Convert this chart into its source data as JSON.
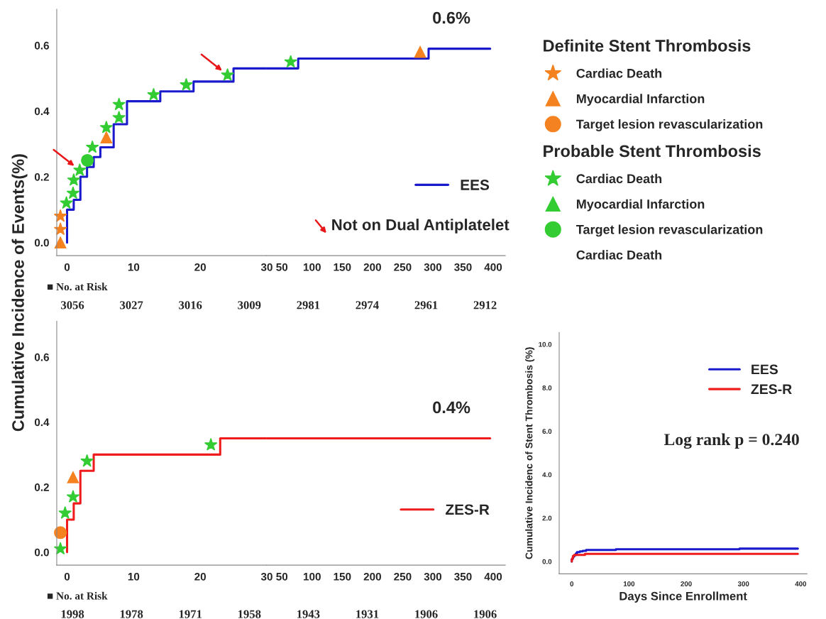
{
  "chart_data": [
    {
      "type": "step",
      "ylabel": "Cumulative Incidence of Events(%)",
      "xlim": [
        -1.55,
        30
      ],
      "ylim": [
        -0.04,
        0.71
      ],
      "xticks": [
        0,
        10,
        20,
        30
      ],
      "yticks": [
        {
          "value": 0,
          "label": "0.0"
        },
        {
          "value": 0.2,
          "label": "0.2"
        },
        {
          "value": 0.4,
          "label": "0.4"
        },
        {
          "value": 0.6,
          "label": "0.6"
        }
      ],
      "legend": "right",
      "series": [
        {
          "color": "#1a1acc",
          "x": [
            0,
            0,
            1,
            2,
            3,
            4,
            5,
            7,
            9,
            14,
            19,
            25,
            30
          ],
          "values": [
            0,
            0.1,
            0.13,
            0.2,
            0.23,
            0.26,
            0.29,
            0.36,
            0.43,
            0.46,
            0.49,
            0.53,
            0.53
          ]
        },
        {
          "name": "Cardiac Death",
          "type": "scatter",
          "marker": "star",
          "color": "#f58220",
          "x": [
            -1,
            -1
          ],
          "values": [
            0.08,
            0.04
          ]
        },
        {
          "name": "Myocardial Infarction",
          "type": "scatter",
          "marker": "triangle",
          "color": "#f58220",
          "x": [
            -1,
            5.9
          ],
          "values": [
            0.0,
            0.32
          ]
        },
        {
          "name": "Target lesion revascularization",
          "type": "scatter",
          "marker": "circle",
          "color": "#f58220"
        },
        {
          "name": "Cardiac Death",
          "type": "scatter",
          "marker": "star",
          "color": "#33cc33",
          "x": [
            -0.1,
            0.9,
            1,
            1.9,
            3.8,
            5.9,
            7.8,
            7.8,
            13,
            17.9,
            24.1
          ],
          "values": [
            0.12,
            0.15,
            0.19,
            0.22,
            0.29,
            0.35,
            0.38,
            0.42,
            0.45,
            0.48,
            0.51
          ]
        },
        {
          "name": "Myocardial Infarction",
          "type": "scatter",
          "marker": "triangle",
          "color": "#33cc33"
        },
        {
          "name": "Target lesion revascularization",
          "type": "scatter",
          "marker": "circle",
          "color": "#33cc33",
          "x": [
            3.05
          ],
          "values": [
            0.25
          ]
        }
      ],
      "annotations": [
        "Definite Stent Thrombosis",
        "Probable Stent Thrombosis",
        "Cardiac Death",
        "■ No. at Risk",
        "3056",
        "3027",
        "3016",
        "3009",
        "2981",
        "2974",
        "2961",
        "2912"
      ]
    },
    {
      "type": "step",
      "xlim": [
        25,
        420
      ],
      "ylim": [
        -0.04,
        0.71
      ],
      "tick_labels": "x",
      "xticks": [
        50,
        100,
        150,
        200,
        250,
        300,
        350,
        400
      ],
      "legend": "bottom right",
      "series": [
        {
          "name": "EES",
          "color": "#1a1acc",
          "x": [
            25,
            77,
            293,
            395
          ],
          "values": [
            0.53,
            0.56,
            0.59,
            0.59
          ]
        },
        {
          "type": "scatter",
          "marker": "triangle",
          "color": "#f58220",
          "x": [
            279
          ],
          "values": [
            0.58
          ]
        },
        {
          "type": "scatter",
          "marker": "star",
          "color": "#33cc33",
          "x": [
            64.6
          ],
          "values": [
            0.55
          ]
        }
      ],
      "annotations": [
        "0.6%",
        "Not on Dual Antiplatelet"
      ]
    },
    {
      "type": "step",
      "xlim": [
        -1.55,
        30
      ],
      "ylim": [
        -0.04,
        0.71
      ],
      "xticks": [
        0,
        10,
        20,
        30
      ],
      "yticks": [
        {
          "value": 0,
          "label": "0.0"
        },
        {
          "value": 0.2,
          "label": "0.2"
        },
        {
          "value": 0.4,
          "label": "0.4"
        },
        {
          "value": 0.6,
          "label": "0.6"
        }
      ],
      "series": [
        {
          "color": "#ee1c1c",
          "x": [
            0,
            0,
            1,
            2,
            4,
            23,
            30
          ],
          "values": [
            0,
            0.1,
            0.15,
            0.25,
            0.3,
            0.35,
            0.35
          ]
        },
        {
          "type": "scatter",
          "marker": "star",
          "color": "#33cc33",
          "x": [
            -1,
            -0.3,
            0.9,
            3,
            21.6
          ],
          "values": [
            0.01,
            0.12,
            0.17,
            0.28,
            0.33
          ]
        },
        {
          "type": "scatter",
          "marker": "triangle",
          "color": "#f58220",
          "x": [
            0.9
          ],
          "values": [
            0.23
          ]
        },
        {
          "type": "scatter",
          "marker": "circle",
          "color": "#f58220",
          "x": [
            -1
          ],
          "values": [
            0.06
          ]
        }
      ],
      "annotations": [
        "■ No. at Risk",
        "1998",
        "1978",
        "1971",
        "1958",
        "1943",
        "1931",
        "1906",
        "1906"
      ]
    },
    {
      "type": "step",
      "xlim": [
        25,
        420
      ],
      "ylim": [
        -0.04,
        0.71
      ],
      "tick_labels": "x",
      "xticks": [
        50,
        100,
        150,
        200,
        250,
        300,
        350,
        400
      ],
      "legend": "bottom right",
      "series": [
        {
          "name": "ZES-R",
          "color": "#ee1c1c",
          "x": [
            25,
            395
          ],
          "values": [
            0.35,
            0.35
          ]
        }
      ],
      "annotations": [
        "0.4%"
      ]
    },
    {
      "type": "step",
      "xlabel": "Days Since Enrollment",
      "ylabel": "Cumulative Incidenc of Stent Thrombosis (%)",
      "xlim": [
        -22,
        411
      ],
      "ylim": [
        -0.57,
        10.55
      ],
      "xticks": [
        0,
        100,
        200,
        300,
        400
      ],
      "yticks": [
        {
          "value": 0,
          "label": "0.0"
        },
        {
          "value": 2,
          "label": "2.0"
        },
        {
          "value": 4,
          "label": "4.0"
        },
        {
          "value": 6,
          "label": "6.0"
        },
        {
          "value": 8,
          "label": "8.0"
        },
        {
          "value": 10,
          "label": "10.0"
        }
      ],
      "legend": "top right",
      "series": [
        {
          "name": "EES",
          "color": "#1a1acc",
          "x": [
            0,
            0,
            1,
            2,
            3,
            4,
            5,
            7,
            9,
            14,
            19,
            25,
            77,
            293,
            395
          ],
          "values": [
            0,
            0.1,
            0.13,
            0.2,
            0.23,
            0.26,
            0.29,
            0.36,
            0.43,
            0.46,
            0.49,
            0.53,
            0.56,
            0.59,
            0.59
          ]
        },
        {
          "name": "ZES-R",
          "color": "#ee1c1c",
          "x": [
            0,
            0,
            1,
            2,
            4,
            23,
            395
          ],
          "values": [
            0,
            0.1,
            0.15,
            0.25,
            0.3,
            0.35,
            0.35
          ]
        }
      ],
      "annotations": [
        "Log rank p = 0.240"
      ]
    }
  ]
}
